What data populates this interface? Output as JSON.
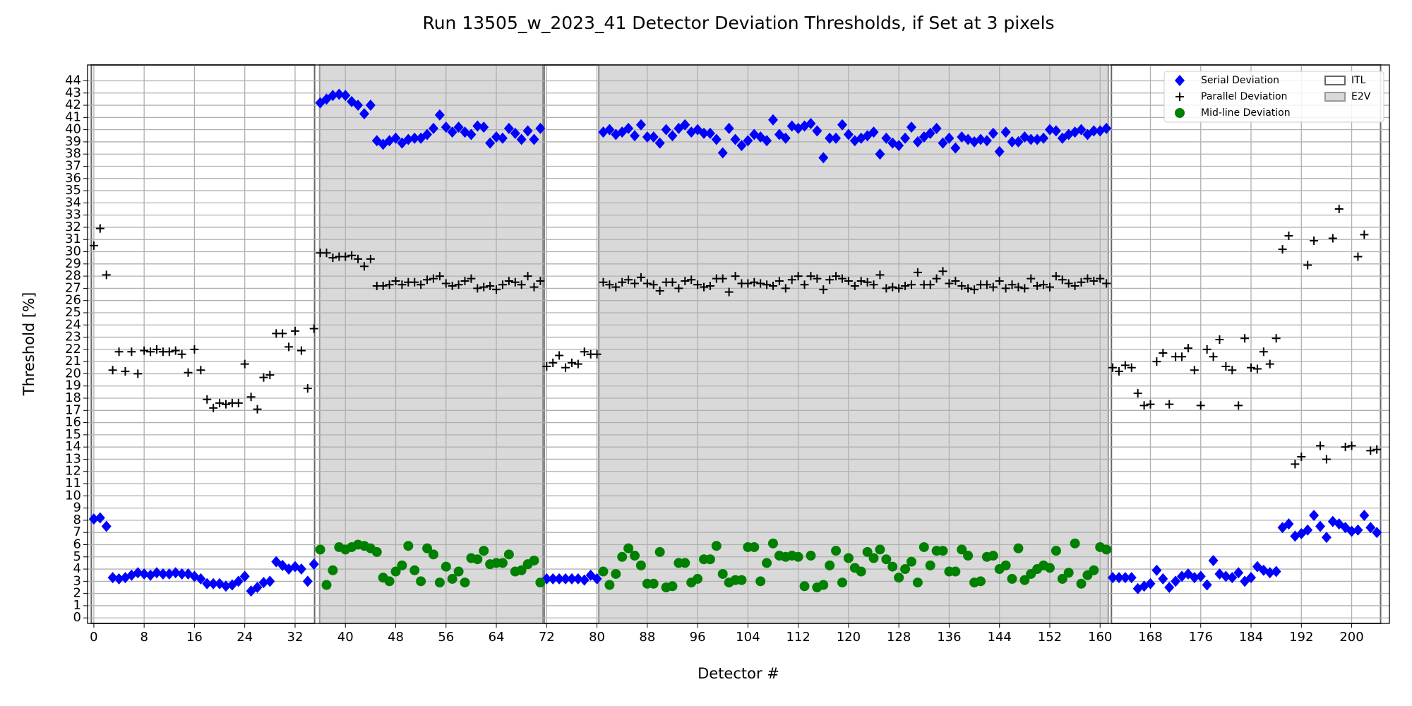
{
  "chart_data": {
    "type": "scatter",
    "title": "Run 13505_w_2023_41 Detector Deviation Thresholds, if Set at 3 pixels",
    "xlabel": "Detector #",
    "ylabel": "Threshold [%]",
    "xlim": [
      -1,
      206
    ],
    "ylim": [
      -0.45,
      45.3
    ],
    "xticks": [
      0,
      8,
      16,
      24,
      32,
      40,
      48,
      56,
      64,
      72,
      80,
      88,
      96,
      104,
      112,
      120,
      128,
      136,
      144,
      152,
      160,
      168,
      176,
      184,
      192,
      200
    ],
    "yticks": [
      0,
      1,
      2,
      3,
      4,
      5,
      6,
      7,
      8,
      9,
      10,
      11,
      12,
      13,
      14,
      15,
      16,
      17,
      18,
      19,
      20,
      21,
      22,
      23,
      24,
      25,
      26,
      27,
      28,
      29,
      30,
      31,
      32,
      33,
      34,
      35,
      36,
      37,
      38,
      39,
      40,
      41,
      42,
      43,
      44
    ],
    "grid": true,
    "legend": "upper right",
    "regions": [
      {
        "label": "ITL",
        "fill": "none",
        "edge": "#666666",
        "spans": [
          [
            -0.4,
            35.1
          ],
          [
            71.6,
            80.3
          ],
          [
            161.8,
            204.6
          ]
        ]
      },
      {
        "label": "E2V",
        "fill": "#d9d9d9",
        "edge": "#999999",
        "spans": [
          [
            35.9,
            71.4
          ],
          [
            80.3,
            161.3
          ]
        ]
      }
    ],
    "x": [
      0,
      1,
      2,
      3,
      4,
      5,
      6,
      7,
      8,
      9,
      10,
      11,
      12,
      13,
      14,
      15,
      16,
      17,
      18,
      19,
      20,
      21,
      22,
      23,
      24,
      25,
      26,
      27,
      28,
      29,
      30,
      31,
      32,
      33,
      34,
      35,
      36,
      37,
      38,
      39,
      40,
      41,
      42,
      43,
      44,
      45,
      46,
      47,
      48,
      49,
      50,
      51,
      52,
      53,
      54,
      55,
      56,
      57,
      58,
      59,
      60,
      61,
      62,
      63,
      64,
      65,
      66,
      67,
      68,
      69,
      70,
      71,
      72,
      73,
      74,
      75,
      76,
      77,
      78,
      79,
      80,
      81,
      82,
      83,
      84,
      85,
      86,
      87,
      88,
      89,
      90,
      91,
      92,
      93,
      94,
      95,
      96,
      97,
      98,
      99,
      100,
      101,
      102,
      103,
      104,
      105,
      106,
      107,
      108,
      109,
      110,
      111,
      112,
      113,
      114,
      115,
      116,
      117,
      118,
      119,
      120,
      121,
      122,
      123,
      124,
      125,
      126,
      127,
      128,
      129,
      130,
      131,
      132,
      133,
      134,
      135,
      136,
      137,
      138,
      139,
      140,
      141,
      142,
      143,
      144,
      145,
      146,
      147,
      148,
      149,
      150,
      151,
      152,
      153,
      154,
      155,
      156,
      157,
      158,
      159,
      160,
      161,
      162,
      163,
      164,
      165,
      166,
      167,
      168,
      169,
      170,
      171,
      172,
      173,
      174,
      175,
      176,
      177,
      178,
      179,
      180,
      181,
      182,
      183,
      184,
      185,
      186,
      187,
      188,
      189,
      190,
      191,
      192,
      193,
      194,
      195,
      196,
      197,
      198,
      199,
      200,
      201,
      202,
      203,
      204
    ],
    "series": [
      {
        "name": "Serial Deviation",
        "color": "#0000ff",
        "marker": "diamond",
        "values": [
          8.1,
          8.2,
          7.5,
          3.3,
          3.2,
          3.3,
          3.5,
          3.7,
          3.6,
          3.5,
          3.7,
          3.6,
          3.6,
          3.7,
          3.6,
          3.6,
          3.4,
          3.2,
          2.8,
          2.8,
          2.8,
          2.6,
          2.7,
          3.0,
          3.4,
          2.2,
          2.5,
          2.9,
          3.0,
          4.6,
          4.3,
          4.0,
          4.2,
          4.0,
          3.0,
          4.4,
          42.2,
          42.5,
          42.8,
          42.9,
          42.8,
          42.3,
          42.0,
          41.3,
          42.0,
          39.1,
          38.8,
          39.1,
          39.3,
          38.9,
          39.2,
          39.3,
          39.3,
          39.6,
          40.1,
          41.2,
          40.2,
          39.8,
          40.2,
          39.8,
          39.6,
          40.3,
          40.2,
          38.9,
          39.4,
          39.3,
          40.1,
          39.7,
          39.2,
          39.9,
          39.2,
          40.1,
          3.2,
          3.2,
          3.2,
          3.2,
          3.2,
          3.2,
          3.1,
          3.5,
          3.2,
          39.8,
          40.0,
          39.6,
          39.8,
          40.1,
          39.5,
          40.4,
          39.4,
          39.4,
          38.9,
          40.0,
          39.5,
          40.1,
          40.4,
          39.8,
          40.0,
          39.7,
          39.7,
          39.2,
          38.1,
          40.1,
          39.2,
          38.7,
          39.1,
          39.6,
          39.4,
          39.1,
          40.8,
          39.6,
          39.3,
          40.3,
          40.1,
          40.3,
          40.5,
          39.9,
          37.7,
          39.3,
          39.3,
          40.4,
          39.6,
          39.1,
          39.3,
          39.5,
          39.8,
          38.0,
          39.3,
          38.9,
          38.7,
          39.3,
          40.2,
          39.0,
          39.4,
          39.7,
          40.1,
          38.9,
          39.3,
          38.5,
          39.4,
          39.2,
          39.0,
          39.2,
          39.1,
          39.7,
          38.2,
          39.8,
          39.0,
          39.0,
          39.4,
          39.2,
          39.2,
          39.3,
          40.0,
          39.9,
          39.3,
          39.6,
          39.8,
          40.0,
          39.6,
          39.9,
          39.9,
          40.1,
          3.3,
          3.3,
          3.3,
          3.3,
          2.4,
          2.6,
          2.8,
          3.9,
          3.2,
          2.5,
          3.0,
          3.4,
          3.6,
          3.3,
          3.4,
          2.7,
          4.7,
          3.6,
          3.4,
          3.3,
          3.7,
          3.0,
          3.3,
          4.2,
          3.9,
          3.7,
          3.8,
          7.4,
          7.7,
          6.7,
          6.9,
          7.2,
          8.4,
          7.5,
          6.6,
          7.9,
          7.7,
          7.4,
          7.1,
          7.2,
          8.4,
          7.4,
          7.0
        ]
      },
      {
        "name": "Parallel Deviation",
        "color": "#000000",
        "marker": "plus",
        "values": [
          30.5,
          31.9,
          28.1,
          20.3,
          21.8,
          20.2,
          21.8,
          20.0,
          21.9,
          21.8,
          22.0,
          21.8,
          21.8,
          21.9,
          21.6,
          20.1,
          22.0,
          20.3,
          17.9,
          17.2,
          17.6,
          17.5,
          17.6,
          17.6,
          20.8,
          18.1,
          17.1,
          19.7,
          19.9,
          23.3,
          23.3,
          22.2,
          23.5,
          21.9,
          18.8,
          23.7,
          29.9,
          29.9,
          29.5,
          29.6,
          29.6,
          29.7,
          29.4,
          28.8,
          29.4,
          27.2,
          27.2,
          27.3,
          27.6,
          27.3,
          27.5,
          27.5,
          27.3,
          27.7,
          27.8,
          28.0,
          27.4,
          27.2,
          27.3,
          27.6,
          27.8,
          27.0,
          27.1,
          27.2,
          26.9,
          27.3,
          27.6,
          27.5,
          27.3,
          28.0,
          27.1,
          27.6,
          20.6,
          20.9,
          21.5,
          20.5,
          20.9,
          20.8,
          21.8,
          21.6,
          21.6,
          27.5,
          27.3,
          27.1,
          27.5,
          27.7,
          27.4,
          27.9,
          27.4,
          27.3,
          26.8,
          27.5,
          27.5,
          27.0,
          27.6,
          27.7,
          27.3,
          27.1,
          27.2,
          27.8,
          27.8,
          26.7,
          28.0,
          27.4,
          27.4,
          27.5,
          27.4,
          27.3,
          27.2,
          27.6,
          27.0,
          27.7,
          28.0,
          27.3,
          28.0,
          27.8,
          26.9,
          27.7,
          28.0,
          27.8,
          27.6,
          27.2,
          27.6,
          27.5,
          27.3,
          28.1,
          27.0,
          27.1,
          27.0,
          27.2,
          27.3,
          28.3,
          27.3,
          27.3,
          27.8,
          28.4,
          27.4,
          27.6,
          27.2,
          27.0,
          26.9,
          27.3,
          27.3,
          27.1,
          27.6,
          27.0,
          27.3,
          27.1,
          27.0,
          27.8,
          27.2,
          27.3,
          27.1,
          28.0,
          27.7,
          27.4,
          27.2,
          27.5,
          27.8,
          27.6,
          27.8,
          27.4,
          20.5,
          20.2,
          20.7,
          20.5,
          18.4,
          17.4,
          17.5,
          21.0,
          21.7,
          17.5,
          21.4,
          21.4,
          22.1,
          20.3,
          17.4,
          22.0,
          21.4,
          22.8,
          20.6,
          20.3,
          17.4,
          22.9,
          20.5,
          20.4,
          21.8,
          20.8,
          22.9,
          30.2,
          31.3,
          12.6,
          13.2,
          28.9,
          30.9,
          14.1,
          13.0,
          31.1,
          33.5,
          14.0,
          14.1,
          29.6,
          31.4,
          13.7,
          13.8
        ]
      },
      {
        "name": "Mid-line Deviation",
        "color": "#008000",
        "marker": "circle",
        "values": [
          null,
          null,
          null,
          null,
          null,
          null,
          null,
          null,
          null,
          null,
          null,
          null,
          null,
          null,
          null,
          null,
          null,
          null,
          null,
          null,
          null,
          null,
          null,
          null,
          null,
          null,
          null,
          null,
          null,
          null,
          null,
          null,
          null,
          null,
          null,
          null,
          5.6,
          2.7,
          3.9,
          5.8,
          5.6,
          5.8,
          6.0,
          5.9,
          5.7,
          5.4,
          3.3,
          3.0,
          3.8,
          4.3,
          5.9,
          3.9,
          3.0,
          5.7,
          5.2,
          2.9,
          4.2,
          3.2,
          3.8,
          2.9,
          4.9,
          4.8,
          5.5,
          4.4,
          4.5,
          4.5,
          5.2,
          3.8,
          3.9,
          4.4,
          4.7,
          2.9,
          null,
          null,
          null,
          null,
          null,
          null,
          null,
          null,
          null,
          3.8,
          2.7,
          3.6,
          5.0,
          5.7,
          5.1,
          4.3,
          2.8,
          2.8,
          5.4,
          2.5,
          2.6,
          4.5,
          4.5,
          2.9,
          3.2,
          4.8,
          4.8,
          5.9,
          3.6,
          2.9,
          3.1,
          3.1,
          5.8,
          5.8,
          3.0,
          4.5,
          6.1,
          5.1,
          5.0,
          5.1,
          5.0,
          2.6,
          5.1,
          2.5,
          2.7,
          4.3,
          5.5,
          2.9,
          4.9,
          4.1,
          3.8,
          5.4,
          4.9,
          5.6,
          4.8,
          4.2,
          3.3,
          4.0,
          4.6,
          2.9,
          5.8,
          4.3,
          5.5,
          5.5,
          3.8,
          3.8,
          5.6,
          5.1,
          2.9,
          3.0,
          5.0,
          5.1,
          4.0,
          4.3,
          3.2,
          5.7,
          3.1,
          3.6,
          4.0,
          4.3,
          4.1,
          5.5,
          3.2,
          3.7,
          6.1,
          2.8,
          3.5,
          3.9,
          5.8,
          5.6,
          null,
          null,
          null,
          null,
          null,
          null,
          null,
          null,
          null,
          null,
          null,
          null,
          null,
          null,
          null,
          null,
          null,
          null,
          null,
          null,
          null,
          null,
          null,
          null,
          null,
          null,
          null,
          null,
          null,
          null,
          null,
          null,
          null,
          null,
          null,
          null,
          null,
          null,
          null,
          null,
          null,
          null,
          null
        ]
      }
    ]
  }
}
